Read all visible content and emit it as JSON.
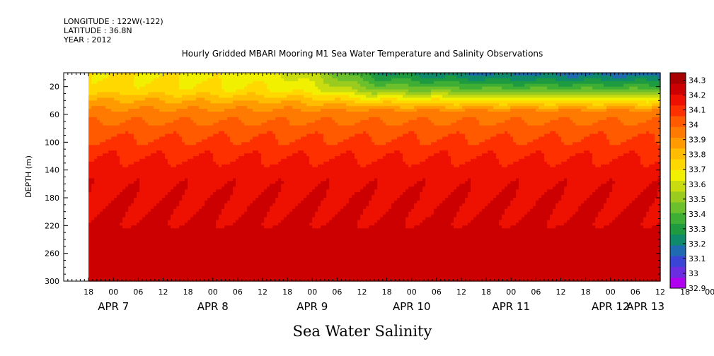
{
  "header": {
    "longitude": "LONGITUDE : 122W(-122)",
    "latitude": "LATITUDE : 36.8N",
    "year": "YEAR : 2012"
  },
  "colors": {
    "scale": [
      "#b000f0",
      "#6a2ee0",
      "#3a45d8",
      "#1f6ab0",
      "#0f8a6a",
      "#1e9a40",
      "#3fae34",
      "#6cc02c",
      "#9acc20",
      "#c8dc10",
      "#f0f000",
      "#ffd800",
      "#ffbc00",
      "#ff9a00",
      "#ff7a00",
      "#ff5a00",
      "#ff3000",
      "#ee1000",
      "#cc0000",
      "#a80000"
    ]
  },
  "chart_data": {
    "type": "heatmap",
    "title": "Hourly Gridded MBARI Mooring M1 Sea Water Temperature and Salinity Observations",
    "xlabel": "Sea Water Salinity",
    "ylabel": "DEPTH (m)",
    "ylim": [
      300,
      0
    ],
    "y_ticks": [
      "20",
      "60",
      "100",
      "140",
      "180",
      "220",
      "260",
      "300"
    ],
    "x_hour_ticks": [
      "18",
      "00",
      "06",
      "12",
      "18",
      "00",
      "06",
      "12",
      "18",
      "00",
      "06",
      "12",
      "18",
      "00",
      "06",
      "12",
      "18",
      "00",
      "06",
      "12",
      "18",
      "00",
      "06",
      "12",
      "18",
      "00"
    ],
    "x_day_labels": [
      "APR  7",
      "APR  8",
      "APR  9",
      "APR 10",
      "APR 11",
      "APR 12",
      "APR 13"
    ],
    "colorbar_labels": [
      "32.9",
      "33",
      "33.1",
      "33.2",
      "33.3",
      "33.4",
      "33.5",
      "33.6",
      "33.7",
      "33.8",
      "33.9",
      "34",
      "34.1",
      "34.2",
      "34.3"
    ],
    "colorbar_min": 32.9,
    "colorbar_max": 34.35,
    "data_start_hour": 6,
    "end_hour": 144,
    "depth_profile": [
      {
        "depth": 5,
        "value": 33.62
      },
      {
        "depth": 25,
        "value": 33.68
      },
      {
        "depth": 40,
        "value": 33.82
      },
      {
        "depth": 55,
        "value": 33.93
      },
      {
        "depth": 80,
        "value": 34.02
      },
      {
        "depth": 110,
        "value": 34.1
      },
      {
        "depth": 140,
        "value": 34.17
      },
      {
        "depth": 180,
        "value": 34.2
      },
      {
        "depth": 220,
        "value": 34.21
      },
      {
        "depth": 250,
        "value": 34.26
      },
      {
        "depth": 280,
        "value": 34.22
      },
      {
        "depth": 300,
        "value": 34.22
      }
    ],
    "surface_shift": [
      {
        "hour": 6,
        "shift": 0.1
      },
      {
        "hour": 50,
        "shift": 0.04
      },
      {
        "hour": 60,
        "shift": -0.05
      },
      {
        "hour": 75,
        "shift": -0.35
      },
      {
        "hour": 100,
        "shift": -0.45
      },
      {
        "hour": 144,
        "shift": -0.48
      }
    ]
  }
}
